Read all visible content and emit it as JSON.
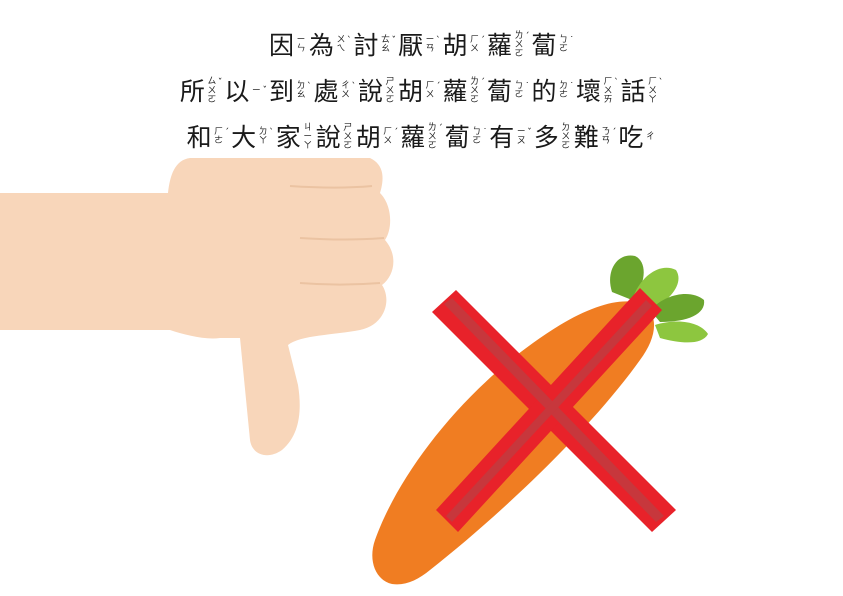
{
  "lines": [
    [
      {
        "char": "因",
        "bopo": [
          "ㄧ",
          "ㄣ"
        ],
        "tone": ""
      },
      {
        "char": "為",
        "bopo": [
          "ㄨ",
          "ㄟ"
        ],
        "tone": "ˋ"
      },
      {
        "char": "討",
        "bopo": [
          "ㄊ",
          "ㄠ"
        ],
        "tone": "ˇ"
      },
      {
        "char": "厭",
        "bopo": [
          "ㄧ",
          "ㄢ"
        ],
        "tone": "ˋ"
      },
      {
        "char": "胡",
        "bopo": [
          "ㄏ",
          "ㄨ"
        ],
        "tone": "ˊ"
      },
      {
        "char": "蘿",
        "bopo": [
          "ㄌ",
          "ㄨ",
          "ㄛ"
        ],
        "tone": "ˊ"
      },
      {
        "char": "蔔",
        "bopo": [
          "ㄅ",
          "ㄛ"
        ],
        "tone": "˙"
      }
    ],
    [
      {
        "char": "所",
        "bopo": [
          "ㄙ",
          "ㄨ",
          "ㄛ"
        ],
        "tone": "ˇ"
      },
      {
        "char": "以",
        "bopo": [
          "ㄧ"
        ],
        "tone": "ˇ"
      },
      {
        "char": "到",
        "bopo": [
          "ㄉ",
          "ㄠ"
        ],
        "tone": "ˋ"
      },
      {
        "char": "處",
        "bopo": [
          "ㄔ",
          "ㄨ"
        ],
        "tone": "ˋ"
      },
      {
        "char": "說",
        "bopo": [
          "ㄕ",
          "ㄨ",
          "ㄛ"
        ],
        "tone": ""
      },
      {
        "char": "胡",
        "bopo": [
          "ㄏ",
          "ㄨ"
        ],
        "tone": "ˊ"
      },
      {
        "char": "蘿",
        "bopo": [
          "ㄌ",
          "ㄨ",
          "ㄛ"
        ],
        "tone": "ˊ"
      },
      {
        "char": "蔔",
        "bopo": [
          "ㄅ",
          "ㄛ"
        ],
        "tone": "˙"
      },
      {
        "char": "的",
        "bopo": [
          "ㄉ",
          "ㄜ"
        ],
        "tone": "˙"
      },
      {
        "char": "壞",
        "bopo": [
          "ㄏ",
          "ㄨ",
          "ㄞ"
        ],
        "tone": "ˋ"
      },
      {
        "char": "話",
        "bopo": [
          "ㄏ",
          "ㄨ",
          "ㄚ"
        ],
        "tone": "ˋ"
      }
    ],
    [
      {
        "char": "和",
        "bopo": [
          "ㄏ",
          "ㄜ"
        ],
        "tone": "ˊ"
      },
      {
        "char": "大",
        "bopo": [
          "ㄉ",
          "ㄚ"
        ],
        "tone": "ˋ"
      },
      {
        "char": "家",
        "bopo": [
          "ㄐ",
          "ㄧ",
          "ㄚ"
        ],
        "tone": ""
      },
      {
        "char": "說",
        "bopo": [
          "ㄕ",
          "ㄨ",
          "ㄛ"
        ],
        "tone": ""
      },
      {
        "char": "胡",
        "bopo": [
          "ㄏ",
          "ㄨ"
        ],
        "tone": "ˊ"
      },
      {
        "char": "蘿",
        "bopo": [
          "ㄌ",
          "ㄨ",
          "ㄛ"
        ],
        "tone": "ˊ"
      },
      {
        "char": "蔔",
        "bopo": [
          "ㄅ",
          "ㄛ"
        ],
        "tone": "˙"
      },
      {
        "char": "有",
        "bopo": [
          "ㄧ",
          "ㄡ"
        ],
        "tone": "ˇ"
      },
      {
        "char": "多",
        "bopo": [
          "ㄉ",
          "ㄨ",
          "ㄛ"
        ],
        "tone": ""
      },
      {
        "char": "難",
        "bopo": [
          "ㄋ",
          "ㄢ"
        ],
        "tone": "ˊ"
      },
      {
        "char": "吃",
        "bopo": [
          "ㄔ"
        ],
        "tone": ""
      }
    ]
  ],
  "illustration": {
    "hand": "thumbs-down-icon",
    "food": "carrot-icon",
    "mark": "red-x-icon",
    "colors": {
      "skin": "#F8D6BA",
      "carrot": "#F07D22",
      "carrot_dark": "#E26A1A",
      "leaf": "#8DC63F",
      "leaf_dark": "#6BA52E",
      "cross": "#E8222A",
      "cross_inner": "#C7373C"
    }
  }
}
